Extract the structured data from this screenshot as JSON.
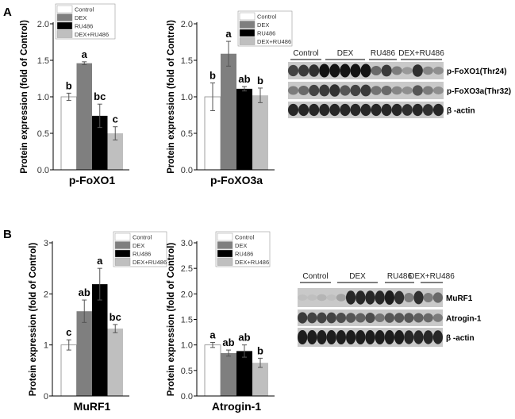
{
  "panels": [
    {
      "label": "A"
    },
    {
      "label": "B"
    }
  ],
  "legend": [
    "Control",
    "DEX",
    "RU486",
    "DEX+RU486"
  ],
  "colors": {
    "Control": "#ffffff",
    "DEX": "#7f7f7f",
    "RU486": "#000000",
    "DEX+RU486": "#bfbfbf"
  },
  "chart_data": [
    {
      "type": "bar",
      "panel": "A",
      "xlabel": "p-FoXO1",
      "ylabel": "Protein expression (fold of Control)",
      "ylim": [
        0,
        2.0
      ],
      "yticks": [
        "0.0",
        "0.5",
        "1.0",
        "1.5",
        "2.0"
      ],
      "categories": [
        "Control",
        "DEX",
        "RU486",
        "DEX+RU486"
      ],
      "values": [
        1.0,
        1.46,
        0.74,
        0.5
      ],
      "errors": [
        0.05,
        0.02,
        0.16,
        0.09
      ],
      "letters": [
        "b",
        "a",
        "bc",
        "c"
      ],
      "legend": "top"
    },
    {
      "type": "bar",
      "panel": "A",
      "xlabel": "p-FoXO3a",
      "ylabel": "Protein expression (fold of Control)",
      "ylim": [
        0,
        2.0
      ],
      "yticks": [
        "0.0",
        "0.5",
        "1.0",
        "1.5",
        "2.0"
      ],
      "categories": [
        "Control",
        "DEX",
        "RU486",
        "DEX+RU486"
      ],
      "values": [
        1.0,
        1.59,
        1.11,
        1.02
      ],
      "errors": [
        0.19,
        0.17,
        0.03,
        0.1
      ],
      "letters": [
        "b",
        "a",
        "ab",
        "b"
      ],
      "legend": "top-right"
    },
    {
      "type": "bar",
      "panel": "B",
      "xlabel": "MuRF1",
      "ylabel": "Protein expression (fold of Control)",
      "ylim": [
        0,
        3
      ],
      "yticks": [
        "0",
        "1",
        "2",
        "3"
      ],
      "categories": [
        "Control",
        "DEX",
        "RU486",
        "DEX+RU486"
      ],
      "values": [
        1.0,
        1.66,
        2.19,
        1.32
      ],
      "errors": [
        0.1,
        0.22,
        0.31,
        0.08
      ],
      "letters": [
        "c",
        "ab",
        "a",
        "bc"
      ],
      "legend": "top-right"
    },
    {
      "type": "bar",
      "panel": "B",
      "xlabel": "Atrogin-1",
      "ylabel": "Protein expression (fold of Control)",
      "ylim": [
        0,
        3.0
      ],
      "yticks": [
        "0.0",
        "0.5",
        "1.0",
        "1.5",
        "2.0",
        "2.5",
        "3.0"
      ],
      "categories": [
        "Control",
        "DEX",
        "RU486",
        "DEX+RU486"
      ],
      "values": [
        1.0,
        0.84,
        0.88,
        0.65
      ],
      "errors": [
        0.05,
        0.06,
        0.12,
        0.09
      ],
      "letters": [
        "a",
        "ab",
        "ab",
        "b"
      ],
      "legend": "top-right"
    }
  ],
  "blots": [
    {
      "panel": "A",
      "groups": [
        "Control",
        "DEX",
        "RU486",
        "DEX+RU486"
      ],
      "rows": [
        "p-FoXO1(Thr24)",
        "p-FoXO3a(Thr32)",
        "β -actin"
      ]
    },
    {
      "panel": "B",
      "groups": [
        "Control",
        "DEX",
        "RU486",
        "DEX+RU486"
      ],
      "rows": [
        "MuRF1",
        "Atrogin-1",
        "β -actin"
      ]
    }
  ]
}
